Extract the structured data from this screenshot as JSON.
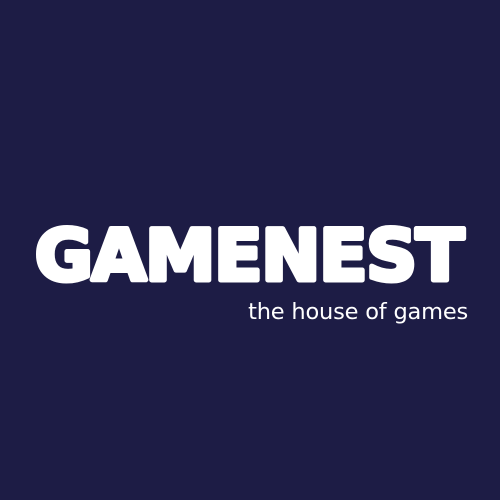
{
  "logo": {
    "wordmark": "GAMENEST",
    "tagline": "the house of games"
  },
  "colors": {
    "background": "#1d1c45",
    "text": "#ffffff"
  }
}
